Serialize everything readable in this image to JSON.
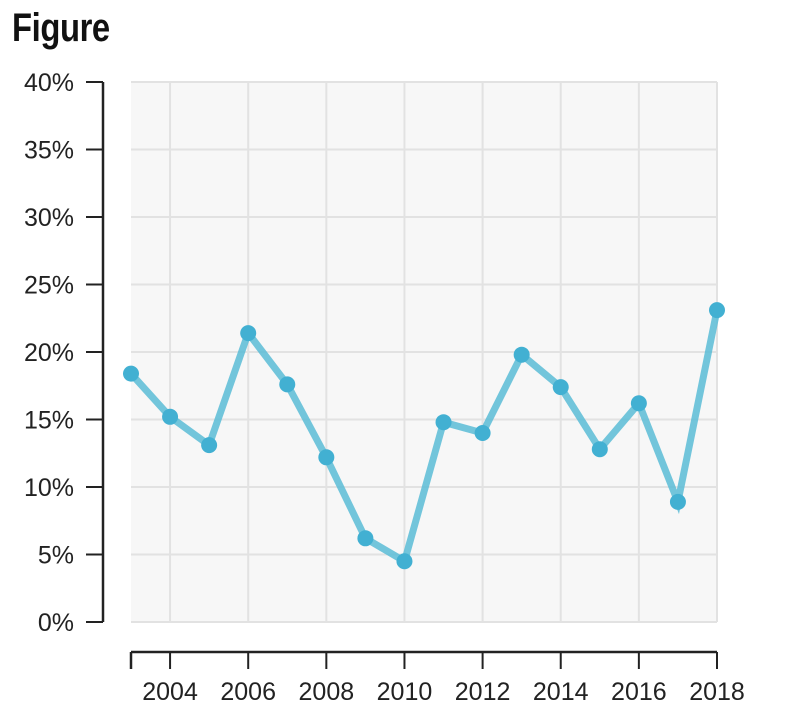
{
  "title": "Figure",
  "chart_data": {
    "type": "line",
    "title": "Figure",
    "xlabel": "",
    "ylabel": "",
    "x": [
      2003,
      2004,
      2005,
      2006,
      2007,
      2008,
      2009,
      2010,
      2011,
      2012,
      2013,
      2014,
      2015,
      2016,
      2017,
      2018
    ],
    "series": [
      {
        "values": [
          18.4,
          15.2,
          13.1,
          21.4,
          17.6,
          12.2,
          6.2,
          4.5,
          14.8,
          14.0,
          19.8,
          17.4,
          12.8,
          16.2,
          8.9,
          23.1
        ]
      }
    ],
    "xlim": [
      2003,
      2018
    ],
    "ylim": [
      0,
      40
    ],
    "x_ticks": [
      "2004",
      "2006",
      "2008",
      "2010",
      "2012",
      "2014",
      "2016",
      "2018"
    ],
    "y_ticks": [
      "0%",
      "5%",
      "10%",
      "15%",
      "20%",
      "25%",
      "30%",
      "35%",
      "40%"
    ],
    "grid": true,
    "legend": "none",
    "colors": {
      "line": "#5bbcd6",
      "point": "#42b0d2",
      "plot_bg": "#f7f7f7",
      "grid": "#e2e2e2",
      "axis": "#222222"
    }
  }
}
